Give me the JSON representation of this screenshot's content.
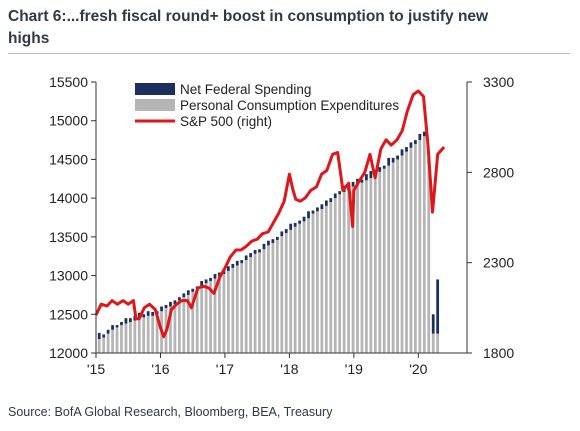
{
  "title": "Chart 6:...fresh fiscal round+ boost in consumption to justify new highs",
  "source": "Source: BofA Global Research, Bloomberg, BEA, Treasury",
  "chart_data": {
    "type": "bar",
    "legend_position": "top-left",
    "grid": false,
    "x_ticks": [
      "'15",
      "'16",
      "'17",
      "'18",
      "'19",
      "'20"
    ],
    "x_range": [
      2015.0,
      2020.6
    ],
    "y_left": {
      "range": [
        12000,
        15500
      ],
      "ticks": [
        "12000",
        "12500",
        "13000",
        "13500",
        "14000",
        "14500",
        "15000",
        "15500"
      ]
    },
    "y_right": {
      "range": [
        1800,
        3300
      ],
      "ticks": [
        "1800",
        "2300",
        "2800",
        "3300"
      ]
    },
    "colors": {
      "pce": "#b5b5b5",
      "federal": "#1c2f5e",
      "sp500": "#e0161b",
      "axis": "#333333"
    },
    "series": [
      {
        "name": "Net Federal Spending",
        "type": "bar-top",
        "color": "#1c2f5e",
        "values": [
          80,
          40,
          50,
          60,
          30,
          40,
          70,
          50,
          60,
          80,
          40,
          60,
          50,
          40,
          60,
          40,
          60,
          50,
          40,
          50,
          60,
          40,
          30,
          70,
          50,
          40,
          60,
          50,
          40,
          60,
          50,
          60,
          40,
          60,
          50,
          50,
          40,
          70,
          60,
          50,
          40,
          60,
          50,
          80,
          50,
          40,
          60,
          90,
          40,
          50,
          60,
          70,
          50,
          60,
          40,
          80,
          50,
          60,
          70,
          40,
          80,
          90,
          50,
          60,
          40,
          100,
          60,
          50,
          80,
          60,
          70,
          50,
          80,
          60,
          70,
          250,
          700
        ]
      },
      {
        "name": "Personal Consumption Expenditures",
        "type": "bar",
        "color": "#b5b5b5",
        "values": [
          12180,
          12200,
          12250,
          12300,
          12330,
          12360,
          12380,
          12400,
          12420,
          12440,
          12460,
          12480,
          12480,
          12500,
          12540,
          12580,
          12600,
          12630,
          12680,
          12720,
          12750,
          12790,
          12830,
          12860,
          12900,
          12930,
          12960,
          12990,
          13020,
          13060,
          13100,
          13130,
          13160,
          13200,
          13240,
          13280,
          13300,
          13340,
          13390,
          13420,
          13460,
          13510,
          13550,
          13590,
          13630,
          13670,
          13700,
          13740,
          13800,
          13830,
          13860,
          13900,
          13950,
          14000,
          14050,
          14080,
          14100,
          14150,
          14180,
          14200,
          14230,
          14260,
          14300,
          14340,
          14380,
          14420,
          14460,
          14500,
          14550,
          14600,
          14650,
          14700,
          14750,
          14800,
          14450,
          12250,
          12250
        ]
      },
      {
        "name": "S&P 500 (right)",
        "axis": "right",
        "type": "line",
        "color": "#e0161b",
        "x": [
          2015.0,
          2015.08,
          2015.17,
          2015.25,
          2015.33,
          2015.42,
          2015.5,
          2015.58,
          2015.62,
          2015.67,
          2015.75,
          2015.83,
          2015.92,
          2016.0,
          2016.05,
          2016.1,
          2016.17,
          2016.25,
          2016.33,
          2016.42,
          2016.48,
          2016.58,
          2016.67,
          2016.75,
          2016.83,
          2016.92,
          2017.0,
          2017.08,
          2017.17,
          2017.25,
          2017.33,
          2017.42,
          2017.5,
          2017.58,
          2017.67,
          2017.75,
          2017.83,
          2017.92,
          2018.0,
          2018.05,
          2018.1,
          2018.17,
          2018.25,
          2018.33,
          2018.42,
          2018.5,
          2018.58,
          2018.67,
          2018.75,
          2018.83,
          2018.92,
          2018.98,
          2019.0,
          2019.08,
          2019.17,
          2019.25,
          2019.33,
          2019.42,
          2019.5,
          2019.58,
          2019.67,
          2019.75,
          2019.83,
          2019.92,
          2020.0,
          2020.08,
          2020.15,
          2020.22,
          2020.3,
          2020.4
        ],
        "values": [
          2010,
          2070,
          2060,
          2090,
          2070,
          2090,
          2070,
          2090,
          1990,
          1990,
          2050,
          2070,
          2040,
          1940,
          1890,
          1930,
          2040,
          2070,
          2090,
          2090,
          2050,
          2160,
          2170,
          2160,
          2130,
          2220,
          2270,
          2330,
          2370,
          2370,
          2390,
          2420,
          2430,
          2460,
          2470,
          2520,
          2570,
          2640,
          2790,
          2710,
          2650,
          2640,
          2660,
          2700,
          2720,
          2790,
          2810,
          2900,
          2910,
          2700,
          2740,
          2500,
          2700,
          2750,
          2800,
          2900,
          2770,
          2930,
          2980,
          2950,
          2980,
          3030,
          3140,
          3230,
          3250,
          3220,
          2950,
          2580,
          2900,
          2940
        ]
      }
    ]
  }
}
